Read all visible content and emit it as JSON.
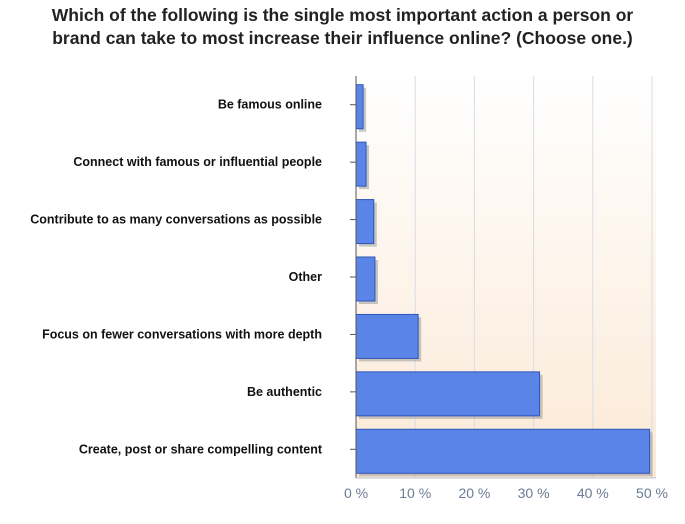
{
  "chart_data": {
    "type": "bar",
    "orientation": "horizontal",
    "title_lines": [
      "Which of the following is the single most important action a person or",
      "brand can take to most increase their influence online? (Choose one.)"
    ],
    "categories": [
      "Be famous online",
      "Connect with famous or influential people",
      "Contribute to as many conversations as possible",
      "Other",
      "Focus on fewer conversations with more depth",
      "Be authentic",
      "Create, post or share compelling content"
    ],
    "values": [
      1.2,
      1.7,
      3.0,
      3.2,
      10.5,
      31.0,
      49.6
    ],
    "xlim": [
      0,
      50
    ],
    "x_ticks": [
      0,
      10,
      20,
      30,
      40,
      50
    ],
    "x_tick_labels": [
      "0 %",
      "10 %",
      "20 %",
      "30 %",
      "40 %",
      "50 %"
    ],
    "xlabel": "",
    "ylabel": "",
    "grid": true,
    "legend": "none",
    "colors": {
      "bar": "#5b84e8",
      "bar_edge": "#2e56b8",
      "bar_shadow": "#9a9a9a",
      "grid": "#d8dde6",
      "plot_bg_top": "#ffffff",
      "plot_bg_bottom": "#fbe9d6",
      "tick_text": "#6a7b95"
    }
  }
}
